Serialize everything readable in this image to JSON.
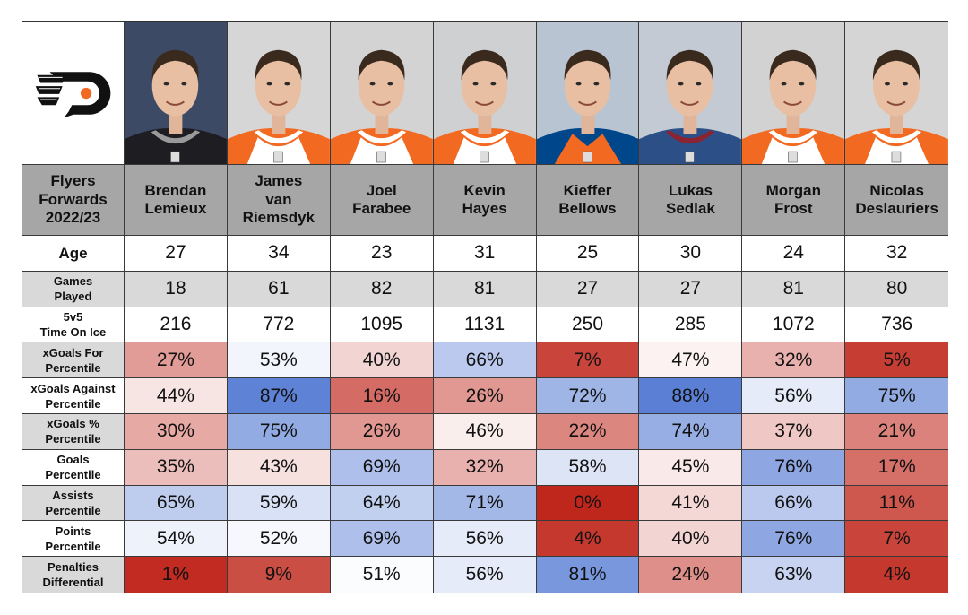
{
  "title": "Flyers Forwards 2022/23",
  "title_lines": [
    "Flyers",
    "Forwards",
    "2022/23"
  ],
  "logo": "philadelphia-flyers-logo",
  "row_labels": [
    {
      "key": "age",
      "lines": [
        "Age"
      ]
    },
    {
      "key": "games_played",
      "lines": [
        "Games",
        "Played"
      ]
    },
    {
      "key": "toi",
      "lines": [
        "5v5",
        "Time On Ice"
      ]
    },
    {
      "key": "xgf",
      "lines": [
        "xGoals For",
        "Percentile"
      ]
    },
    {
      "key": "xga",
      "lines": [
        "xGoals Against",
        "Percentile"
      ]
    },
    {
      "key": "xgpct",
      "lines": [
        "xGoals %",
        "Percentile"
      ]
    },
    {
      "key": "goals",
      "lines": [
        "Goals",
        "Percentile"
      ]
    },
    {
      "key": "assists",
      "lines": [
        "Assists",
        "Percentile"
      ]
    },
    {
      "key": "points",
      "lines": [
        "Points",
        "Percentile"
      ]
    },
    {
      "key": "penalties",
      "lines": [
        "Penalties",
        "Differential"
      ]
    }
  ],
  "colors": {
    "low": "#c0271c",
    "mid": "#ffffff",
    "high": "#5a7fd4",
    "header_bg": "#a6a6a6",
    "grey_row": "#d9d9d9"
  },
  "players": [
    {
      "first": "Brendan",
      "last": "Lemieux",
      "name_lines": [
        "Brendan",
        "Lemieux"
      ],
      "jersey": "black",
      "photo_bg": "#3c4a66",
      "age": "27",
      "games_played": "18",
      "toi": "216",
      "xgf": 27,
      "xga": 44,
      "xgpct": 30,
      "goals": 35,
      "assists": 65,
      "points": 54,
      "penalties": 1
    },
    {
      "first": "James",
      "last": "van Riemsdyk",
      "name_lines": [
        "James",
        "van",
        "Riemsdyk"
      ],
      "jersey": "orange",
      "photo_bg": "#d6d6d6",
      "age": "34",
      "games_played": "61",
      "toi": "772",
      "xgf": 53,
      "xga": 87,
      "xgpct": 75,
      "goals": 43,
      "assists": 59,
      "points": 52,
      "penalties": 9
    },
    {
      "first": "Joel",
      "last": "Farabee",
      "name_lines": [
        "Joel",
        "Farabee"
      ],
      "jersey": "orange",
      "photo_bg": "#d3d3d3",
      "age": "23",
      "games_played": "82",
      "toi": "1095",
      "xgf": 40,
      "xga": 16,
      "xgpct": 26,
      "goals": 69,
      "assists": 64,
      "points": 69,
      "penalties": 51
    },
    {
      "first": "Kevin",
      "last": "Hayes",
      "name_lines": [
        "Kevin",
        "Hayes"
      ],
      "jersey": "orange",
      "photo_bg": "#cfd0d2",
      "age": "31",
      "games_played": "81",
      "toi": "1131",
      "xgf": 66,
      "xga": 26,
      "xgpct": 46,
      "goals": 32,
      "assists": 71,
      "points": 56,
      "penalties": 56
    },
    {
      "first": "Kieffer",
      "last": "Bellows",
      "name_lines": [
        "Kieffer",
        "Bellows"
      ],
      "jersey": "islanders",
      "photo_bg": "#b9c4d2",
      "age": "25",
      "games_played": "27",
      "toi": "250",
      "xgf": 7,
      "xga": 72,
      "xgpct": 22,
      "goals": 58,
      "assists": 0,
      "points": 4,
      "penalties": 81
    },
    {
      "first": "Lukas",
      "last": "Sedlak",
      "name_lines": [
        "Lukas",
        "Sedlak"
      ],
      "jersey": "avalanche",
      "photo_bg": "#c3cad3",
      "age": "30",
      "games_played": "27",
      "toi": "285",
      "xgf": 47,
      "xga": 88,
      "xgpct": 74,
      "goals": 45,
      "assists": 41,
      "points": 40,
      "penalties": 24
    },
    {
      "first": "Morgan",
      "last": "Frost",
      "name_lines": [
        "Morgan",
        "Frost"
      ],
      "jersey": "orange",
      "photo_bg": "#d2d2d2",
      "age": "24",
      "games_played": "81",
      "toi": "1072",
      "xgf": 32,
      "xga": 56,
      "xgpct": 37,
      "goals": 76,
      "assists": 66,
      "points": 76,
      "penalties": 63
    },
    {
      "first": "Nicolas",
      "last": "Deslauriers",
      "name_lines": [
        "Nicolas",
        "Deslauriers"
      ],
      "jersey": "orange",
      "photo_bg": "#d5d5d5",
      "age": "32",
      "games_played": "80",
      "toi": "736",
      "xgf": 5,
      "xga": 75,
      "xgpct": 21,
      "goals": 17,
      "assists": 11,
      "points": 7,
      "penalties": 4
    }
  ]
}
